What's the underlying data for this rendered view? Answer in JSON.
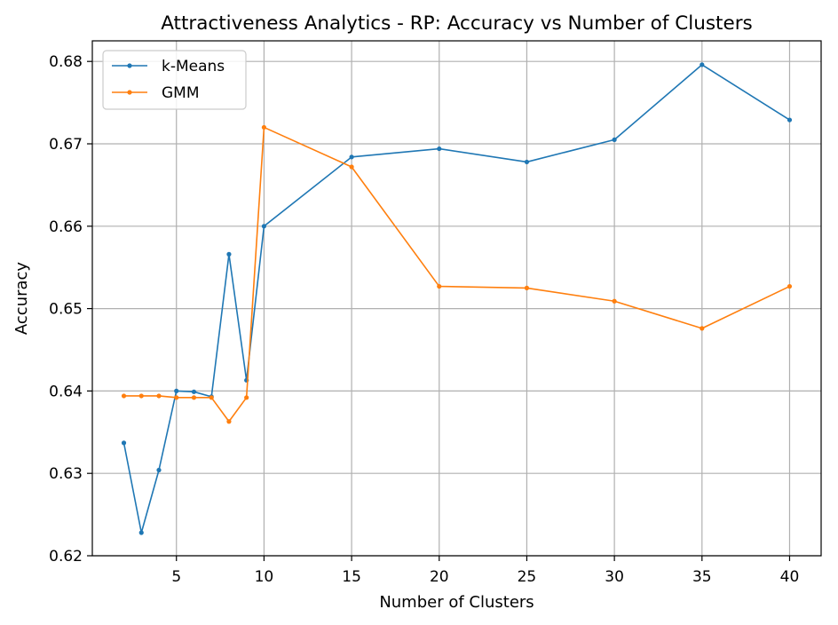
{
  "chart_data": {
    "type": "line",
    "title": "Attractiveness Analytics - RP: Accuracy vs Number of Clusters",
    "xlabel": "Number of Clusters",
    "ylabel": "Accuracy",
    "xlim": [
      0.2,
      41.8
    ],
    "ylim": [
      0.62,
      0.6825
    ],
    "xticks": [
      5,
      10,
      15,
      20,
      25,
      30,
      35,
      40
    ],
    "yticks": [
      0.62,
      0.63,
      0.64,
      0.65,
      0.66,
      0.67,
      0.68
    ],
    "ytick_labels": [
      "0.62",
      "0.63",
      "0.64",
      "0.65",
      "0.66",
      "0.67",
      "0.68"
    ],
    "grid": true,
    "legend_position": "top-left",
    "x": [
      2,
      3,
      4,
      5,
      6,
      7,
      8,
      9,
      10,
      15,
      20,
      25,
      30,
      35,
      40
    ],
    "series": [
      {
        "name": "k-Means",
        "color": "#1f77b4",
        "values": [
          0.6337,
          0.6228,
          0.6304,
          0.64,
          0.6399,
          0.6393,
          0.6566,
          0.6413,
          0.66,
          0.6684,
          0.6694,
          0.6678,
          0.6705,
          0.6796,
          0.6729
        ]
      },
      {
        "name": "GMM",
        "color": "#ff7f0e",
        "values": [
          0.6394,
          0.6394,
          0.6394,
          0.6392,
          0.6392,
          0.6392,
          0.6363,
          0.6392,
          0.672,
          0.6672,
          0.6527,
          0.6525,
          0.6509,
          0.6476,
          0.6527
        ]
      }
    ]
  }
}
